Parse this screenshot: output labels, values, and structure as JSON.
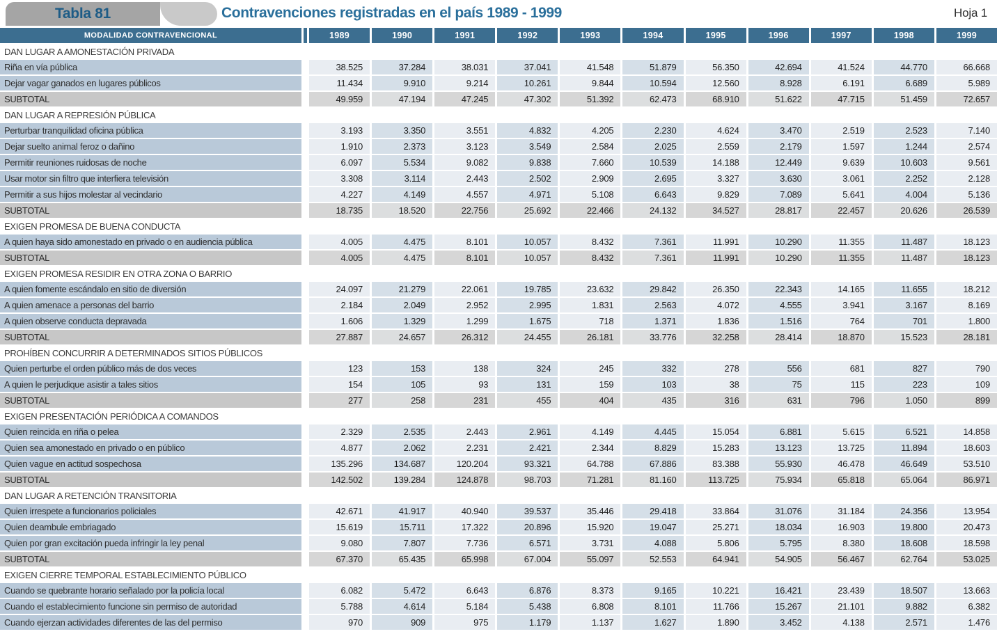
{
  "header": {
    "table_label": "Tabla 81",
    "title": "Contravenciones registradas en el país 1989 - 1999",
    "sheet": "Hoja 1"
  },
  "colors": {
    "header_band": "#3c6e90",
    "title_blue": "#2a6f9b",
    "tab_label_blue": "#1e5c86",
    "tab_gray": "#a5a5a5",
    "tab_cap_gray": "#c9c9c9",
    "row_label_bg": "#b9c9d9",
    "col_odd_bg": "#e9edf2",
    "col_even_bg": "#d5dfe8",
    "subtotal_label_bg": "#c7c7c7",
    "subtotal_cell_bg": "#d6d6d6"
  },
  "table": {
    "label_header": "MODALIDAD  CONTRAVENCIONAL",
    "years": [
      "1989",
      "1990",
      "1991",
      "1992",
      "1993",
      "1994",
      "1995",
      "1996",
      "1997",
      "1998",
      "1999"
    ],
    "sections": [
      {
        "name": "DAN LUGAR A AMONESTACIÓN PRIVADA",
        "rows": [
          {
            "label": "Riña en vía pública",
            "values": [
              "38.525",
              "37.284",
              "38.031",
              "37.041",
              "41.548",
              "51.879",
              "56.350",
              "42.694",
              "41.524",
              "44.770",
              "66.668"
            ]
          },
          {
            "label": "Dejar vagar ganados en lugares públicos",
            "values": [
              "11.434",
              "9.910",
              "9.214",
              "10.261",
              "9.844",
              "10.594",
              "12.560",
              "8.928",
              "6.191",
              "6.689",
              "5.989"
            ]
          }
        ],
        "subtotal": {
          "label": "SUBTOTAL",
          "values": [
            "49.959",
            "47.194",
            "47.245",
            "47.302",
            "51.392",
            "62.473",
            "68.910",
            "51.622",
            "47.715",
            "51.459",
            "72.657"
          ]
        }
      },
      {
        "name": "DAN LUGAR A REPRESIÓN PÚBLICA",
        "rows": [
          {
            "label": "Perturbar tranquilidad oficina pública",
            "values": [
              "3.193",
              "3.350",
              "3.551",
              "4.832",
              "4.205",
              "2.230",
              "4.624",
              "3.470",
              "2.519",
              "2.523",
              "7.140"
            ]
          },
          {
            "label": "Dejar suelto animal feroz o dañino",
            "values": [
              "1.910",
              "2.373",
              "3.123",
              "3.549",
              "2.584",
              "2.025",
              "2.559",
              "2.179",
              "1.597",
              "1.244",
              "2.574"
            ]
          },
          {
            "label": "Permitir reuniones ruidosas de noche",
            "values": [
              "6.097",
              "5.534",
              "9.082",
              "9.838",
              "7.660",
              "10.539",
              "14.188",
              "12.449",
              "9.639",
              "10.603",
              "9.561"
            ]
          },
          {
            "label": "Usar motor sin filtro que interfiera televisión",
            "values": [
              "3.308",
              "3.114",
              "2.443",
              "2.502",
              "2.909",
              "2.695",
              "3.327",
              "3.630",
              "3.061",
              "2.252",
              "2.128"
            ]
          },
          {
            "label": "Permitir a sus hijos molestar al vecindario",
            "values": [
              "4.227",
              "4.149",
              "4.557",
              "4.971",
              "5.108",
              "6.643",
              "9.829",
              "7.089",
              "5.641",
              "4.004",
              "5.136"
            ]
          }
        ],
        "subtotal": {
          "label": "SUBTOTAL",
          "values": [
            "18.735",
            "18.520",
            "22.756",
            "25.692",
            "22.466",
            "24.132",
            "34.527",
            "28.817",
            "22.457",
            "20.626",
            "26.539"
          ]
        }
      },
      {
        "name": "EXIGEN PROMESA DE BUENA CONDUCTA",
        "rows": [
          {
            "label": "A quien haya sido amonestado en privado o en audiencia pública",
            "values": [
              "4.005",
              "4.475",
              "8.101",
              "10.057",
              "8.432",
              "7.361",
              "11.991",
              "10.290",
              "11.355",
              "11.487",
              "18.123"
            ]
          }
        ],
        "subtotal": {
          "label": "SUBTOTAL",
          "values": [
            "4.005",
            "4.475",
            "8.101",
            "10.057",
            "8.432",
            "7.361",
            "11.991",
            "10.290",
            "11.355",
            "11.487",
            "18.123"
          ]
        }
      },
      {
        "name": "EXIGEN PROMESA RESIDIR EN OTRA ZONA O BARRIO",
        "rows": [
          {
            "label": "A quien fomente escándalo en sitio de diversión",
            "values": [
              "24.097",
              "21.279",
              "22.061",
              "19.785",
              "23.632",
              "29.842",
              "26.350",
              "22.343",
              "14.165",
              "11.655",
              "18.212"
            ]
          },
          {
            "label": "A quien amenace a personas del barrio",
            "values": [
              "2.184",
              "2.049",
              "2.952",
              "2.995",
              "1.831",
              "2.563",
              "4.072",
              "4.555",
              "3.941",
              "3.167",
              "8.169"
            ]
          },
          {
            "label": "A quien observe conducta depravada",
            "values": [
              "1.606",
              "1.329",
              "1.299",
              "1.675",
              "718",
              "1.371",
              "1.836",
              "1.516",
              "764",
              "701",
              "1.800"
            ]
          }
        ],
        "subtotal": {
          "label": "SUBTOTAL",
          "values": [
            "27.887",
            "24.657",
            "26.312",
            "24.455",
            "26.181",
            "33.776",
            "32.258",
            "28.414",
            "18.870",
            "15.523",
            "28.181"
          ]
        }
      },
      {
        "name": "PROHÍBEN CONCURRIR A DETERMINADOS SITIOS PÚBLICOS",
        "rows": [
          {
            "label": "Quien perturbe el orden público más de dos veces",
            "values": [
              "123",
              "153",
              "138",
              "324",
              "245",
              "332",
              "278",
              "556",
              "681",
              "827",
              "790"
            ]
          },
          {
            "label": "A quien le perjudique asistir a tales sitios",
            "values": [
              "154",
              "105",
              "93",
              "131",
              "159",
              "103",
              "38",
              "75",
              "115",
              "223",
              "109"
            ]
          }
        ],
        "subtotal": {
          "label": "SUBTOTAL",
          "values": [
            "277",
            "258",
            "231",
            "455",
            "404",
            "435",
            "316",
            "631",
            "796",
            "1.050",
            "899"
          ]
        }
      },
      {
        "name": "EXIGEN PRESENTACIÓN PERIÓDICA A COMANDOS",
        "rows": [
          {
            "label": "Quien reincida en riña o pelea",
            "values": [
              "2.329",
              "2.535",
              "2.443",
              "2.961",
              "4.149",
              "4.445",
              "15.054",
              "6.881",
              "5.615",
              "6.521",
              "14.858"
            ]
          },
          {
            "label": "Quien sea amonestado en privado o en público",
            "values": [
              "4.877",
              "2.062",
              "2.231",
              "2.421",
              "2.344",
              "8.829",
              "15.283",
              "13.123",
              "13.725",
              "11.894",
              "18.603"
            ]
          },
          {
            "label": "Quien vague en actitud sospechosa",
            "values": [
              "135.296",
              "134.687",
              "120.204",
              "93.321",
              "64.788",
              "67.886",
              "83.388",
              "55.930",
              "46.478",
              "46.649",
              "53.510"
            ]
          }
        ],
        "subtotal": {
          "label": "SUBTOTAL",
          "values": [
            "142.502",
            "139.284",
            "124.878",
            "98.703",
            "71.281",
            "81.160",
            "113.725",
            "75.934",
            "65.818",
            "65.064",
            "86.971"
          ]
        }
      },
      {
        "name": "DAN LUGAR A RETENCIÓN TRANSITORIA",
        "rows": [
          {
            "label": "Quien irrespete a funcionarios policiales",
            "values": [
              "42.671",
              "41.917",
              "40.940",
              "39.537",
              "35.446",
              "29.418",
              "33.864",
              "31.076",
              "31.184",
              "24.356",
              "13.954"
            ]
          },
          {
            "label": "Quien deambule embriagado",
            "values": [
              "15.619",
              "15.711",
              "17.322",
              "20.896",
              "15.920",
              "19.047",
              "25.271",
              "18.034",
              "16.903",
              "19.800",
              "20.473"
            ]
          },
          {
            "label": "Quien por gran excitación pueda infringir la ley penal",
            "values": [
              "9.080",
              "7.807",
              "7.736",
              "6.571",
              "3.731",
              "4.088",
              "5.806",
              "5.795",
              "8.380",
              "18.608",
              "18.598"
            ]
          }
        ],
        "subtotal": {
          "label": "SUBTOTAL",
          "values": [
            "67.370",
            "65.435",
            "65.998",
            "67.004",
            "55.097",
            "52.553",
            "64.941",
            "54.905",
            "56.467",
            "62.764",
            "53.025"
          ]
        }
      },
      {
        "name": "EXIGEN CIERRE TEMPORAL ESTABLECIMIENTO PÚBLICO",
        "rows": [
          {
            "label": "Cuando se quebrante horario señalado por la policía local",
            "values": [
              "6.082",
              "5.472",
              "6.643",
              "6.876",
              "8.373",
              "9.165",
              "10.221",
              "16.421",
              "23.439",
              "18.507",
              "13.663"
            ]
          },
          {
            "label": "Cuando el establecimiento funcione sin permiso de autoridad",
            "values": [
              "5.788",
              "4.614",
              "5.184",
              "5.438",
              "6.808",
              "8.101",
              "11.766",
              "15.267",
              "21.101",
              "9.882",
              "6.382"
            ]
          },
          {
            "label": "Cuando ejerzan actividades diferentes de las del permiso",
            "values": [
              "970",
              "909",
              "975",
              "1.179",
              "1.137",
              "1.627",
              "1.890",
              "3.452",
              "4.138",
              "2.571",
              "1.476"
            ]
          }
        ],
        "subtotal": null
      }
    ]
  }
}
